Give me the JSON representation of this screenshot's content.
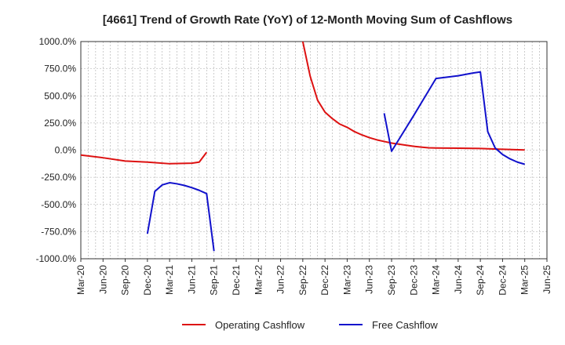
{
  "chart_data": {
    "type": "line",
    "title": "[4661]  Trend of Growth Rate (YoY) of 12-Month Moving Sum of Cashflows",
    "xlabel": "",
    "ylabel": "",
    "ylim": [
      -1000,
      1000
    ],
    "y_ticks": [
      1000,
      750,
      500,
      250,
      0,
      -250,
      -500,
      -750,
      -1000
    ],
    "y_tick_labels": [
      "1000.0%",
      "750.0%",
      "500.0%",
      "250.0%",
      "0.0%",
      "-250.0%",
      "-500.0%",
      "-750.0%",
      "-1000.0%"
    ],
    "x_tick_labels": [
      "Mar-20",
      "Jun-20",
      "Sep-20",
      "Dec-20",
      "Mar-21",
      "Jun-21",
      "Sep-21",
      "Dec-21",
      "Mar-22",
      "Jun-22",
      "Sep-22",
      "Dec-22",
      "Mar-23",
      "Jun-23",
      "Sep-23",
      "Dec-23",
      "Mar-24",
      "Jun-24",
      "Sep-24",
      "Dec-24",
      "Mar-25",
      "Jun-25"
    ],
    "grid": true,
    "legend_position": "bottom",
    "series": [
      {
        "name": "Operating Cashflow",
        "color": "#dd1111",
        "points": [
          [
            "Mar-20",
            -45
          ],
          [
            "Jun-20",
            -70
          ],
          [
            "Sep-20",
            -100
          ],
          [
            "Dec-20",
            -110
          ],
          [
            "Mar-21",
            -125
          ],
          [
            "Jun-21",
            -120
          ],
          [
            "Jul-21",
            -110
          ],
          [
            "Aug-21",
            -20
          ],
          null,
          [
            "Sep-22",
            1000
          ],
          [
            "Oct-22",
            680
          ],
          [
            "Nov-22",
            460
          ],
          [
            "Dec-22",
            350
          ],
          [
            "Jan-23",
            290
          ],
          [
            "Feb-23",
            240
          ],
          [
            "Mar-23",
            210
          ],
          [
            "Apr-23",
            170
          ],
          [
            "May-23",
            140
          ],
          [
            "Jun-23",
            115
          ],
          [
            "Jul-23",
            95
          ],
          [
            "Aug-23",
            80
          ],
          [
            "Sep-23",
            65
          ],
          [
            "Oct-23",
            55
          ],
          [
            "Nov-23",
            45
          ],
          [
            "Dec-23",
            35
          ],
          [
            "Jan-24",
            28
          ],
          [
            "Feb-24",
            22
          ],
          [
            "Mar-24",
            20
          ],
          [
            "Jun-24",
            18
          ],
          [
            "Sep-24",
            15
          ],
          [
            "Dec-24",
            8
          ],
          [
            "Mar-25",
            2
          ]
        ]
      },
      {
        "name": "Free Cashflow",
        "color": "#1111cc",
        "points": [
          [
            "Dec-20",
            -770
          ],
          [
            "Jan-21",
            -380
          ],
          [
            "Feb-21",
            -320
          ],
          [
            "Mar-21",
            -300
          ],
          [
            "Apr-21",
            -310
          ],
          [
            "May-21",
            -325
          ],
          [
            "Jun-21",
            -345
          ],
          [
            "Jul-21",
            -370
          ],
          [
            "Aug-21",
            -400
          ],
          [
            "Sep-21",
            -930
          ],
          null,
          [
            "Aug-23",
            340
          ],
          [
            "Sep-23",
            -10
          ],
          [
            "Dec-23",
            320
          ],
          [
            "Mar-24",
            660
          ],
          [
            "Jun-24",
            685
          ],
          [
            "Aug-24",
            710
          ],
          [
            "Sep-24",
            720
          ],
          [
            "Oct-24",
            170
          ],
          [
            "Nov-24",
            20
          ],
          [
            "Dec-24",
            -40
          ],
          [
            "Jan-25",
            -80
          ],
          [
            "Feb-25",
            -110
          ],
          [
            "Mar-25",
            -130
          ]
        ]
      }
    ]
  },
  "colors": {
    "grid": "#aaaaaa",
    "axis": "#333333",
    "background": "#ffffff"
  }
}
